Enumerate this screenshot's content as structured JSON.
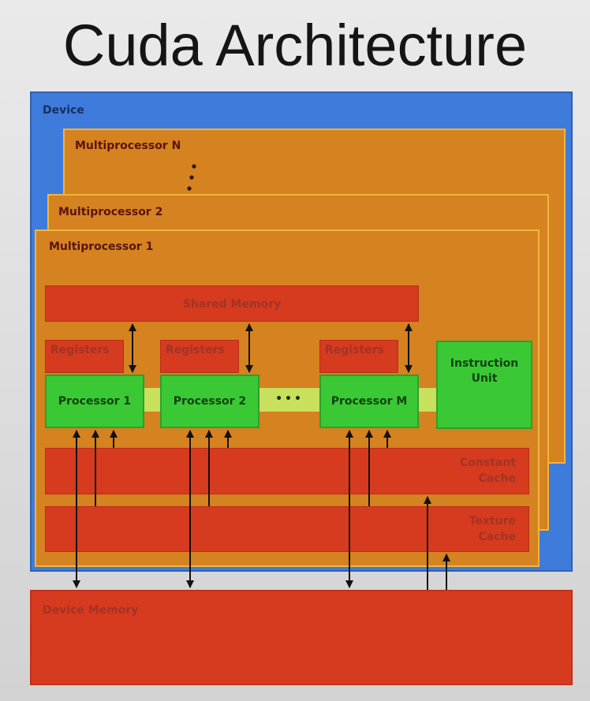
{
  "title": "Cuda Architecture",
  "device": {
    "label": "Device"
  },
  "multiprocessors": {
    "n_label": "Multiprocessor N",
    "two_label": "Multiprocessor 2",
    "one_label": "Multiprocessor 1"
  },
  "shared_memory": {
    "label": "Shared Memory"
  },
  "registers": {
    "label": "Registers"
  },
  "processors": [
    {
      "label": "Processor 1"
    },
    {
      "label": "Processor 2"
    },
    {
      "label": "Processor M"
    }
  ],
  "processor_ellipsis": "•••",
  "instruction_unit": {
    "label": "Instruction Unit"
  },
  "constant_cache": {
    "line1": "Constant",
    "line2": "Cache"
  },
  "texture_cache": {
    "line1": "Texture",
    "line2": "Cache"
  },
  "device_memory": {
    "label": "Device Memory"
  },
  "colors": {
    "device_blue": "#3f7bdb",
    "multiprocessor_orange": "#d58220",
    "memory_red": "#d63a1f",
    "processor_green": "#3ac935",
    "link_yellow": "#c9e05f"
  }
}
